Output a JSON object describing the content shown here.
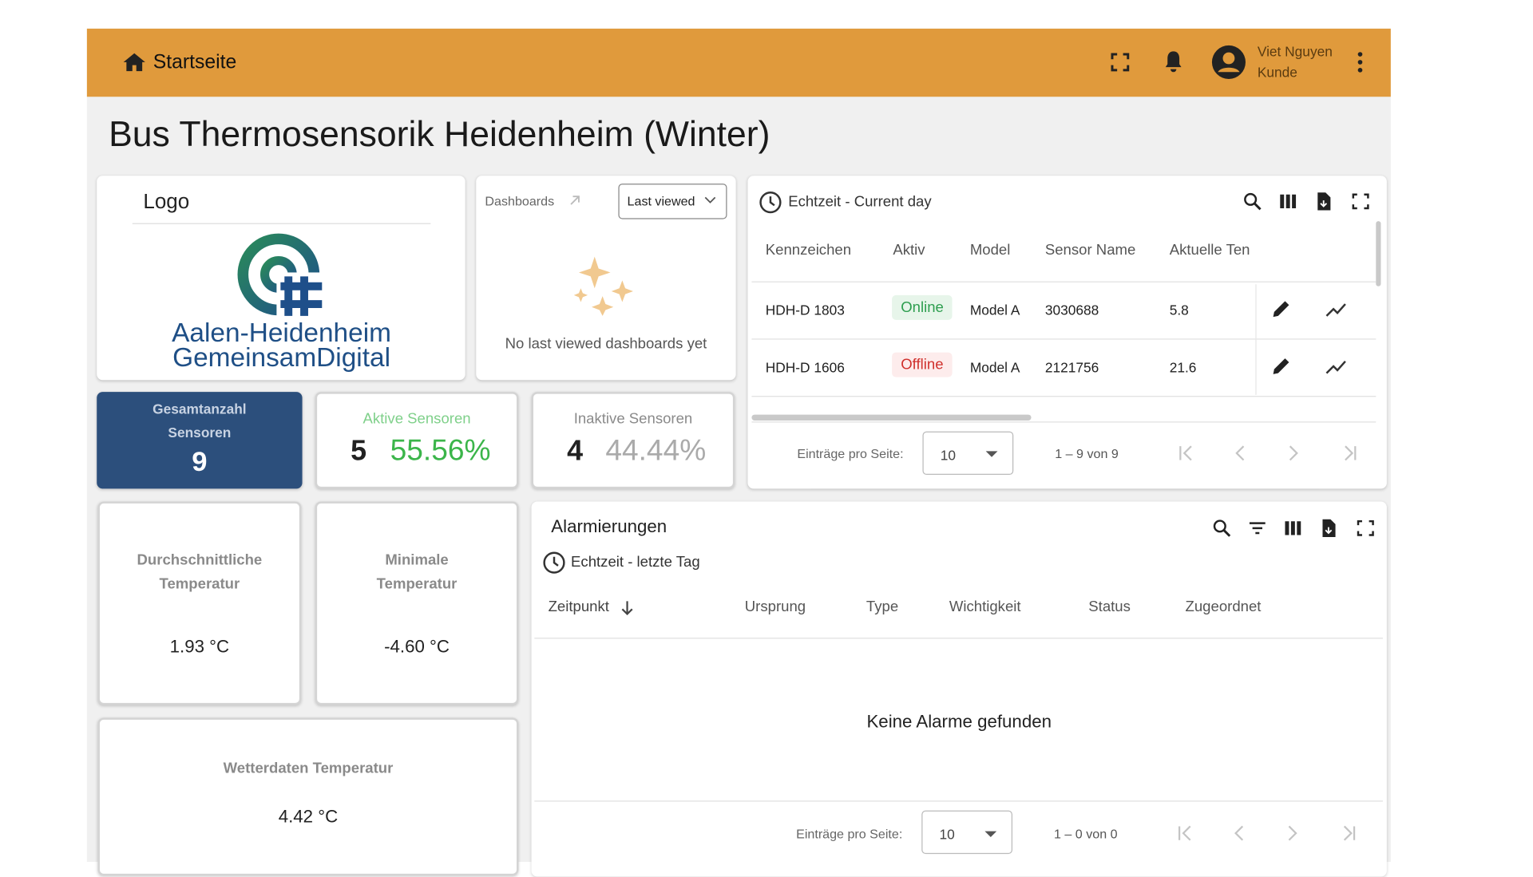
{
  "header": {
    "breadcrumb": "Startseite",
    "user_name": "Viet Nguyen",
    "user_role": "Kunde"
  },
  "title": "Bus Thermosensorik Heidenheim (Winter)",
  "logo_card": {
    "title": "Logo",
    "logo_line1": "Aalen-Heidenheim",
    "logo_line2": "GemeinsamDigital"
  },
  "dashboards": {
    "title": "Dashboards",
    "filter": "Last viewed",
    "empty": "No last viewed dashboards yet"
  },
  "stats": {
    "total": {
      "label": "Gesamtanzahl Sensoren",
      "value": "9"
    },
    "active": {
      "label": "Aktive Sensoren",
      "count": "5",
      "percent": "55.56%"
    },
    "inactive": {
      "label": "Inaktive Sensoren",
      "count": "4",
      "percent": "44.44%"
    },
    "avg_temp": {
      "label": "Durchschnittliche Temperatur",
      "value": "1.93 °C"
    },
    "min_temp": {
      "label": "Minimale Temperatur",
      "value": "-4.60 °C"
    },
    "weather_temp": {
      "label": "Wetterdaten Temperatur",
      "value": "4.42 °C"
    }
  },
  "sensor_table": {
    "title": "Echtzeit - Current day",
    "columns": [
      "Kennzeichen",
      "Aktiv",
      "Model",
      "Sensor Name",
      "Aktuelle Ten"
    ],
    "rows": [
      [
        "HDH-D 1803",
        "Online",
        "Model A",
        "3030688",
        "5.8"
      ],
      [
        "HDH-D 1606",
        "Offline",
        "Model A",
        "2121756",
        "21.6"
      ]
    ],
    "page_size_label": "Einträge pro Seite:",
    "page_size": "10",
    "range": "1 – 9 von 9"
  },
  "alarms": {
    "title": "Alarmierungen",
    "subtitle": "Echtzeit - letzte Tag",
    "columns": [
      "Zeitpunkt",
      "Ursprung",
      "Type",
      "Wichtigkeit",
      "Status",
      "Zugeordnet"
    ],
    "empty": "Keine Alarme gefunden",
    "page_size_label": "Einträge pro Seite:",
    "page_size": "10",
    "range": "1 – 0 von 0"
  }
}
